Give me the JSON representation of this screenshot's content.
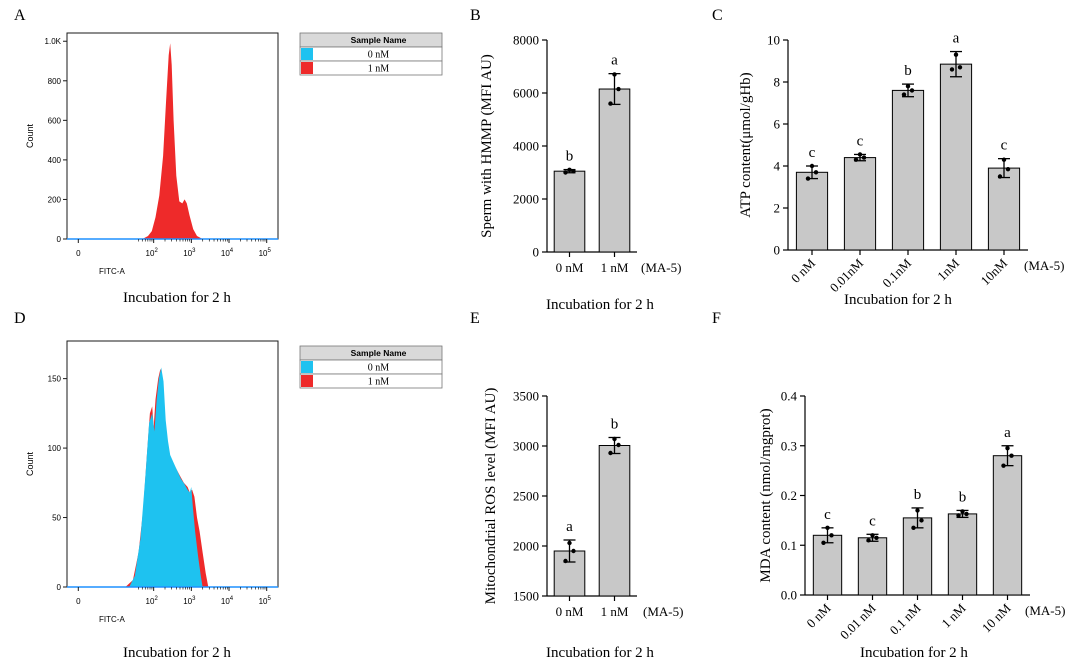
{
  "figure": {
    "panel_letters": [
      "A",
      "B",
      "C",
      "D",
      "E",
      "F"
    ]
  },
  "colors": {
    "blue": "#1EC2F0",
    "red": "#EE2A2A",
    "bar_fill": "#C8C8C8",
    "axis": "#000000",
    "flow_axis": "#1a1a1a",
    "legend_header": "#d9d9d9"
  },
  "chart_data": [
    {
      "id": "A",
      "type": "area",
      "title": "",
      "xlabel": "FITC-A",
      "ylabel": "Count",
      "ytick_labels": [
        "0",
        "200",
        "400",
        "600",
        "800",
        "1.0K"
      ],
      "ylim": [
        0,
        1000
      ],
      "xlim": [
        -0.3,
        5.3
      ],
      "xtick_base": [
        "0",
        "10",
        "10",
        "10",
        "10",
        "10"
      ],
      "xtick_exp": [
        "",
        "2",
        "3",
        "4",
        "5"
      ],
      "caption": "Incubation for 2 h",
      "legend_header": "Sample Name",
      "series": [
        {
          "name": "0 nM",
          "color": "#1EC2F0",
          "points": [
            [
              2.05,
              0
            ],
            [
              2.15,
              20
            ],
            [
              2.22,
              80
            ],
            [
              2.28,
              300
            ],
            [
              2.32,
              600
            ],
            [
              2.36,
              720
            ],
            [
              2.4,
              680
            ],
            [
              2.44,
              450
            ],
            [
              2.48,
              250
            ],
            [
              2.52,
              140
            ],
            [
              2.58,
              70
            ],
            [
              2.64,
              90
            ],
            [
              2.7,
              60
            ],
            [
              2.78,
              25
            ],
            [
              2.9,
              5
            ],
            [
              3.0,
              0
            ]
          ]
        },
        {
          "name": "1 nM",
          "color": "#EE2A2A",
          "points": [
            [
              1.7,
              0
            ],
            [
              1.85,
              15
            ],
            [
              1.95,
              40
            ],
            [
              2.05,
              110
            ],
            [
              2.15,
              220
            ],
            [
              2.25,
              420
            ],
            [
              2.33,
              700
            ],
            [
              2.4,
              930
            ],
            [
              2.44,
              990
            ],
            [
              2.48,
              880
            ],
            [
              2.53,
              600
            ],
            [
              2.6,
              320
            ],
            [
              2.68,
              190
            ],
            [
              2.76,
              180
            ],
            [
              2.82,
              200
            ],
            [
              2.88,
              180
            ],
            [
              2.95,
              120
            ],
            [
              3.05,
              50
            ],
            [
              3.15,
              15
            ],
            [
              3.3,
              0
            ]
          ]
        }
      ]
    },
    {
      "id": "B",
      "type": "bar",
      "categories": [
        "0 nM",
        "1 nM"
      ],
      "values": [
        3050,
        6150
      ],
      "errors": [
        60,
        580
      ],
      "points": [
        [
          3000,
          3050,
          3100
        ],
        [
          5600,
          6150,
          6700
        ]
      ],
      "letters": [
        "b",
        "a"
      ],
      "ylabel": "Sperm with HMMP (MFI AU)",
      "ylim": [
        0,
        8000
      ],
      "yticks": [
        0,
        2000,
        4000,
        6000,
        8000
      ],
      "xnote": "(MA-5)",
      "caption": "Incubation for 2 h"
    },
    {
      "id": "C",
      "type": "bar",
      "categories": [
        "0 nM",
        "0.01nM",
        "0.1nM",
        "1nM",
        "10nM"
      ],
      "values": [
        3.7,
        4.4,
        7.6,
        8.85,
        3.9
      ],
      "errors": [
        0.3,
        0.15,
        0.3,
        0.6,
        0.45
      ],
      "points": [
        [
          3.4,
          3.7,
          4.0
        ],
        [
          4.3,
          4.4,
          4.55
        ],
        [
          7.4,
          7.6,
          7.8
        ],
        [
          8.6,
          8.7,
          9.3
        ],
        [
          3.5,
          3.85,
          4.3
        ]
      ],
      "letters": [
        "c",
        "c",
        "b",
        "a",
        "c"
      ],
      "ylabel": "ATP  content(μmol/gHb)",
      "ylim": [
        0,
        10
      ],
      "yticks": [
        0,
        2,
        4,
        6,
        8,
        10
      ],
      "xnote": "(MA-5)",
      "caption": "Incubation for 2 h"
    },
    {
      "id": "D",
      "type": "area",
      "title": "",
      "xlabel": "FITC-A",
      "ylabel": "Count",
      "ytick_labels": [
        "0",
        "50",
        "100",
        "150"
      ],
      "ylim": [
        0,
        170
      ],
      "xlim": [
        -0.3,
        5.3
      ],
      "xtick_base": [
        "0",
        "10",
        "10",
        "10",
        "10",
        "10"
      ],
      "xtick_exp": [
        "",
        "2",
        "3",
        "4",
        "5"
      ],
      "caption": "Incubation for 2 h",
      "legend_header": "Sample Name",
      "series": [
        {
          "name": "1 nM",
          "color": "#EE2A2A",
          "points": [
            [
              1.25,
              0
            ],
            [
              1.45,
              5
            ],
            [
              1.6,
              25
            ],
            [
              1.72,
              55
            ],
            [
              1.82,
              95
            ],
            [
              1.9,
              125
            ],
            [
              1.96,
              130
            ],
            [
              2.0,
              115
            ],
            [
              2.05,
              135
            ],
            [
              2.12,
              150
            ],
            [
              2.18,
              157
            ],
            [
              2.24,
              150
            ],
            [
              2.3,
              120
            ],
            [
              2.36,
              105
            ],
            [
              2.42,
              95
            ],
            [
              2.5,
              90
            ],
            [
              2.6,
              85
            ],
            [
              2.7,
              80
            ],
            [
              2.8,
              75
            ],
            [
              2.9,
              72
            ],
            [
              2.96,
              68
            ],
            [
              3.02,
              70
            ],
            [
              3.08,
              65
            ],
            [
              3.15,
              50
            ],
            [
              3.22,
              40
            ],
            [
              3.3,
              25
            ],
            [
              3.38,
              10
            ],
            [
              3.45,
              0
            ]
          ]
        },
        {
          "name": "0 nM",
          "color": "#1EC2F0",
          "points": [
            [
              1.35,
              0
            ],
            [
              1.5,
              8
            ],
            [
              1.65,
              35
            ],
            [
              1.78,
              80
            ],
            [
              1.88,
              118
            ],
            [
              1.96,
              125
            ],
            [
              2.02,
              112
            ],
            [
              2.08,
              135
            ],
            [
              2.14,
              150
            ],
            [
              2.2,
              158
            ],
            [
              2.26,
              148
            ],
            [
              2.32,
              120
            ],
            [
              2.38,
              105
            ],
            [
              2.44,
              95
            ],
            [
              2.52,
              90
            ],
            [
              2.62,
              84
            ],
            [
              2.72,
              78
            ],
            [
              2.82,
              74
            ],
            [
              2.9,
              70
            ],
            [
              2.96,
              68
            ],
            [
              3.0,
              72
            ],
            [
              3.04,
              58
            ],
            [
              3.1,
              40
            ],
            [
              3.18,
              22
            ],
            [
              3.25,
              8
            ],
            [
              3.3,
              0
            ]
          ]
        }
      ]
    },
    {
      "id": "E",
      "type": "bar",
      "categories": [
        "0 nM",
        "1 nM"
      ],
      "values": [
        1950,
        3005
      ],
      "errors": [
        110,
        80
      ],
      "points": [
        [
          1850,
          1950,
          2030
        ],
        [
          2930,
          3010,
          3070
        ]
      ],
      "letters": [
        "a",
        "b"
      ],
      "ylabel": "Mitochondrial ROS level (MFI AU)",
      "ylim": [
        1500,
        3500
      ],
      "yticks": [
        1500,
        2000,
        2500,
        3000,
        3500
      ],
      "xnote": "(MA-5)",
      "caption": "Incubation for 2 h"
    },
    {
      "id": "F",
      "type": "bar",
      "categories": [
        "0 nM",
        "0.01 nM",
        "0.1 nM",
        "1 nM",
        "10 nM"
      ],
      "values": [
        0.12,
        0.115,
        0.155,
        0.163,
        0.28
      ],
      "errors": [
        0.015,
        0.007,
        0.02,
        0.007,
        0.02
      ],
      "points": [
        [
          0.105,
          0.12,
          0.135
        ],
        [
          0.11,
          0.115,
          0.12
        ],
        [
          0.135,
          0.15,
          0.17
        ],
        [
          0.16,
          0.163,
          0.168
        ],
        [
          0.26,
          0.28,
          0.295
        ]
      ],
      "letters": [
        "c",
        "c",
        "b",
        "b",
        "a"
      ],
      "ylabel": "MDA  content (nmol/mgprot)",
      "ylim": [
        0,
        0.4
      ],
      "yticks": [
        "0.0",
        "0.1",
        "0.2",
        "0.3",
        "0.4"
      ],
      "xnote": "(MA-5)",
      "caption": "Incubation for 2 h"
    }
  ]
}
